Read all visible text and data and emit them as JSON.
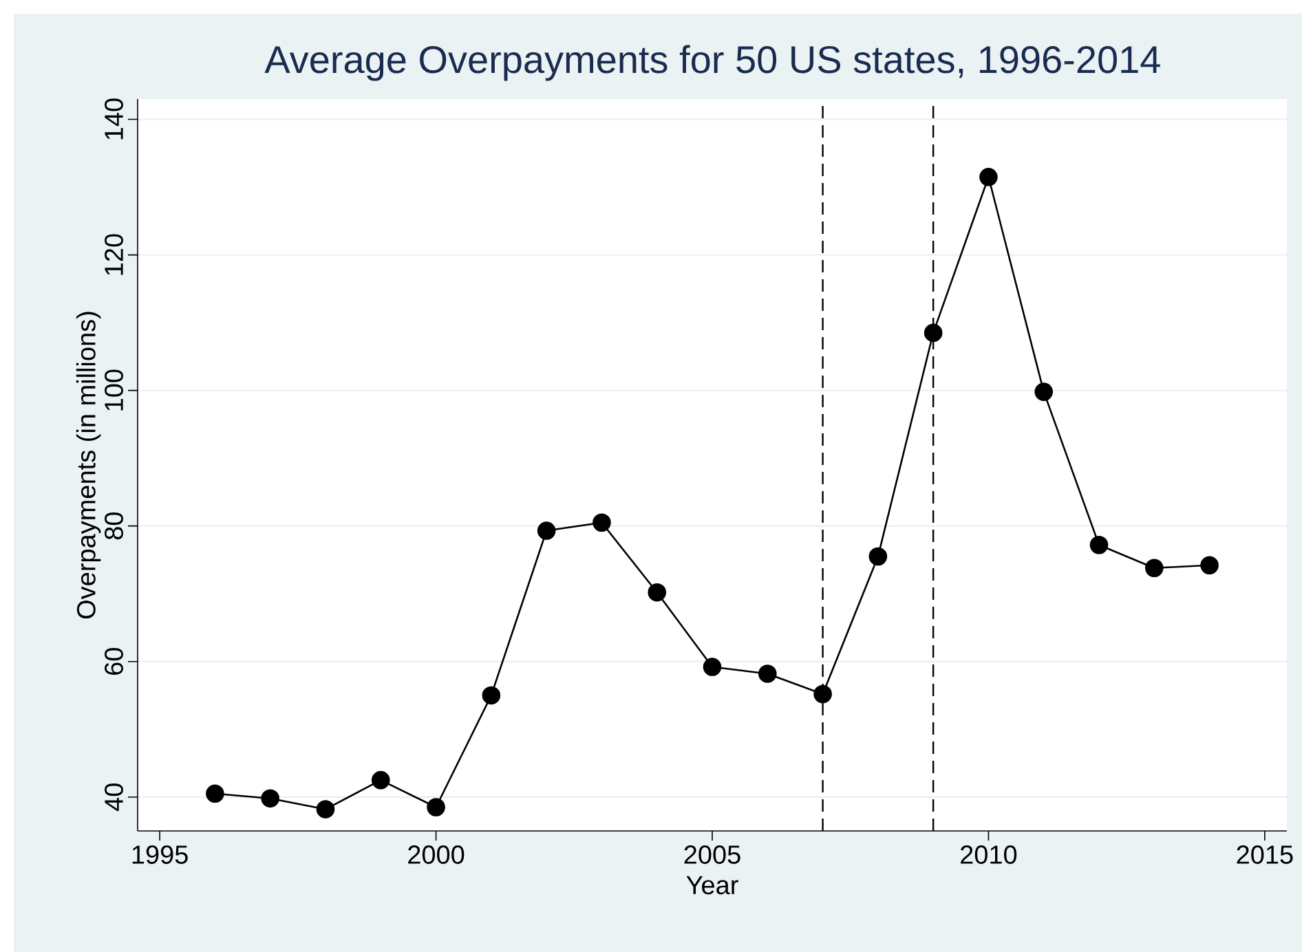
{
  "chart_data": {
    "type": "line",
    "title": "Average Overpayments for 50 US states, 1996-2014",
    "xlabel": "Year",
    "ylabel": "Overpayments (in millions)",
    "x": [
      1996,
      1997,
      1998,
      1999,
      2000,
      2001,
      2002,
      2003,
      2004,
      2005,
      2006,
      2007,
      2008,
      2009,
      2010,
      2011,
      2012,
      2013,
      2014
    ],
    "series": [
      {
        "color": "#000000",
        "values": [
          40.5,
          39.8,
          38.2,
          42.5,
          38.5,
          55,
          79.3,
          80.5,
          70.2,
          59.2,
          58.2,
          55.2,
          75.5,
          108.5,
          131.5,
          99.8,
          77.2,
          73.8,
          74.2
        ]
      }
    ],
    "xlim": [
      1994.6,
      2015.4
    ],
    "ylim": [
      35,
      143
    ],
    "xticks": [
      1995,
      2000,
      2005,
      2010,
      2015
    ],
    "yticks": [
      40,
      60,
      80,
      100,
      120,
      140
    ],
    "ref_lines": [
      {
        "axis": "x",
        "value": 2007,
        "line_style": "dashed",
        "color": "#000000"
      },
      {
        "axis": "x",
        "value": 2009,
        "line_style": "dashed",
        "color": "#000000"
      }
    ],
    "grid": "y",
    "marker": "circle",
    "line_style": "solid"
  }
}
